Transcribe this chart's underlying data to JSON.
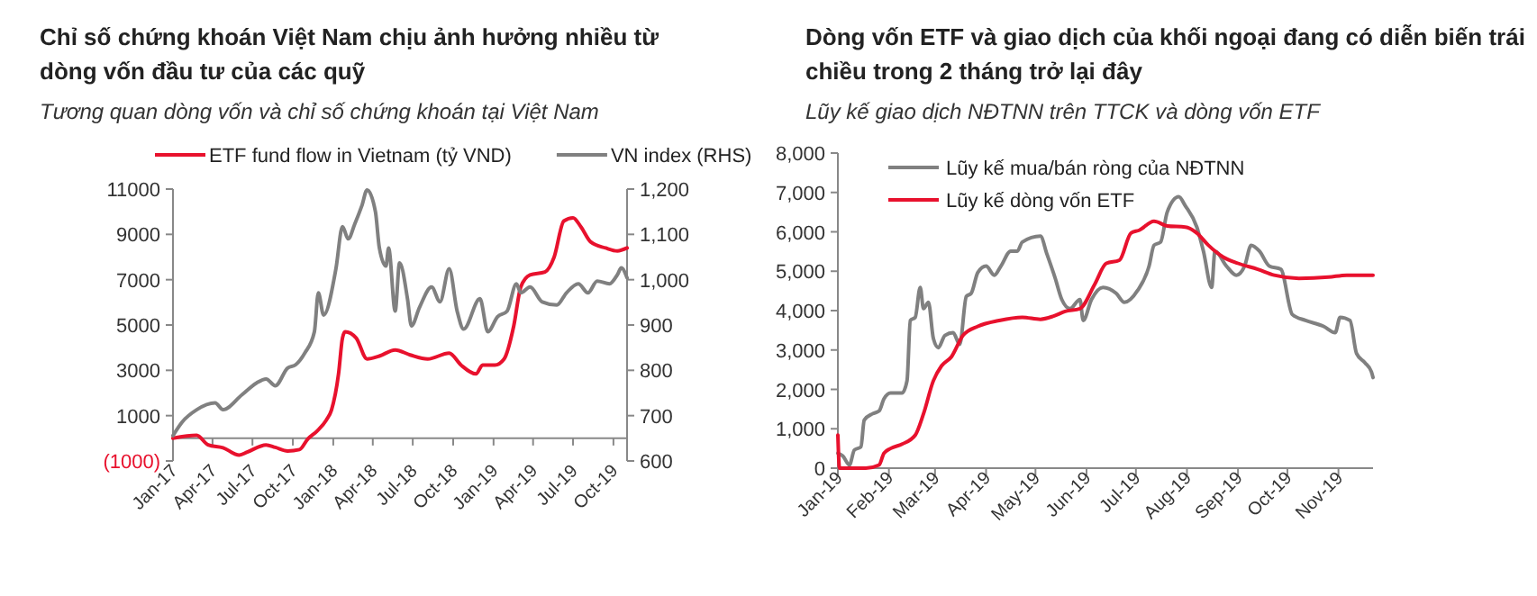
{
  "chart_data": [
    {
      "type": "line",
      "title": "Chỉ số chứng khoán Việt Nam chịu ảnh hưởng nhiều từ dòng vốn đầu tư của các quỹ",
      "subtitle": "Tương quan dòng vốn và chỉ số chứng khoán tại Việt Nam",
      "legend": "top",
      "grid": false,
      "xlim": [
        "2017-01-01",
        "2019-11-01"
      ],
      "xticks": [
        {
          "value": "2017-01-01",
          "label": "Jan-17"
        },
        {
          "value": "2017-04-01",
          "label": "Apr-17"
        },
        {
          "value": "2017-07-01",
          "label": "Jul-17"
        },
        {
          "value": "2017-10-01",
          "label": "Oct-17"
        },
        {
          "value": "2018-01-01",
          "label": "Jan-18"
        },
        {
          "value": "2018-04-01",
          "label": "Apr-18"
        },
        {
          "value": "2018-07-01",
          "label": "Jul-18"
        },
        {
          "value": "2018-10-01",
          "label": "Oct-18"
        },
        {
          "value": "2019-01-01",
          "label": "Jan-19"
        },
        {
          "value": "2019-04-01",
          "label": "Apr-19"
        },
        {
          "value": "2019-07-01",
          "label": "Jul-19"
        },
        {
          "value": "2019-10-01",
          "label": "Oct-19"
        }
      ],
      "ylim": [
        -1000,
        11000
      ],
      "yticks": [
        {
          "value": -1000,
          "label": "(1000)"
        },
        1000,
        3000,
        5000,
        7000,
        9000,
        11000
      ],
      "y2lim": [
        600,
        1200
      ],
      "y2ticks": [
        600,
        700,
        800,
        900,
        {
          "value": 1000,
          "label": "1,000"
        },
        {
          "value": 1100,
          "label": "1,100"
        },
        {
          "value": 1200,
          "label": "1,200"
        }
      ],
      "series": [
        {
          "name": "ETF  fund flow in Vietnam (tỷ VND)",
          "color": "#e8112d",
          "x": [
            "2017-01-01",
            "2017-02-24",
            "2017-03-22",
            "2017-04-25",
            "2017-06-01",
            "2017-06-19",
            "2017-08-01",
            "2017-08-22",
            "2017-09-19",
            "2017-10-16",
            "2017-11-04",
            "2017-11-25",
            "2017-12-16",
            "2017-12-28",
            "2018-01-13",
            "2018-01-22",
            "2018-01-28",
            "2018-02-22",
            "2018-03-19",
            "2018-04-16",
            "2018-05-22",
            "2018-06-25",
            "2018-08-04",
            "2018-09-22",
            "2018-10-19",
            "2018-11-22",
            "2018-12-07",
            "2019-01-04",
            "2019-01-25",
            "2019-02-16",
            "2019-03-04",
            "2019-03-25",
            "2019-04-28",
            "2019-05-19",
            "2019-06-10",
            "2019-07-01",
            "2019-07-19",
            "2019-08-10",
            "2019-09-13",
            "2019-10-10",
            "2019-11-01"
          ],
          "values": [
            0,
            130,
            -290,
            -420,
            -740,
            -610,
            -290,
            -400,
            -560,
            -500,
            -30,
            320,
            800,
            1250,
            2840,
            4430,
            4700,
            4430,
            3500,
            3630,
            3900,
            3680,
            3500,
            3760,
            3230,
            2840,
            3230,
            3230,
            3500,
            4960,
            6680,
            7210,
            7340,
            8000,
            9590,
            9730,
            9330,
            8670,
            8400,
            8270,
            8400
          ]
        },
        {
          "name": "VN index (RHS)",
          "color": "#808080",
          "axis": "y2",
          "x": [
            "2017-01-01",
            "2017-01-22",
            "2017-02-24",
            "2017-04-07",
            "2017-04-25",
            "2017-06-07",
            "2017-07-10",
            "2017-08-01",
            "2017-08-22",
            "2017-09-19",
            "2017-10-07",
            "2017-10-28",
            "2017-11-19",
            "2017-11-28",
            "2017-12-10",
            "2018-01-07",
            "2018-01-22",
            "2018-02-04",
            "2018-02-19",
            "2018-03-07",
            "2018-03-19",
            "2018-04-07",
            "2018-04-16",
            "2018-05-01",
            "2018-05-07",
            "2018-05-22",
            "2018-06-01",
            "2018-06-19",
            "2018-06-28",
            "2018-07-16",
            "2018-08-13",
            "2018-09-01",
            "2018-09-22",
            "2018-10-10",
            "2018-10-25",
            "2018-12-01",
            "2018-12-19",
            "2019-01-10",
            "2019-02-01",
            "2019-02-22",
            "2019-03-04",
            "2019-03-25",
            "2019-04-22",
            "2019-05-25",
            "2019-06-16",
            "2019-07-13",
            "2019-08-04",
            "2019-08-25",
            "2019-09-22",
            "2019-10-10",
            "2019-10-19",
            "2019-11-01"
          ],
          "values": [
            656,
            686,
            713,
            728,
            713,
            746,
            772,
            781,
            766,
            805,
            812,
            838,
            885,
            971,
            922,
            1024,
            1117,
            1090,
            1123,
            1163,
            1198,
            1150,
            1070,
            1030,
            1070,
            931,
            1037,
            958,
            898,
            938,
            984,
            951,
            1024,
            931,
            891,
            958,
            885,
            918,
            931,
            991,
            971,
            984,
            951,
            944,
            971,
            991,
            971,
            997,
            991,
            1011,
            1026,
            1004
          ]
        }
      ]
    },
    {
      "type": "line",
      "title": "Dòng vốn ETF và giao dịch của khối ngoại đang có diễn biến trái chiều trong 2 tháng trở lại đây",
      "subtitle": "Lũy kế giao dịch NĐTNN trên TTCK và dòng vốn ETF",
      "legend": "top left",
      "grid": false,
      "xlim": [
        "2019-01-01",
        "2019-11-22"
      ],
      "xticks": [
        {
          "value": "2019-01-01",
          "label": "Jan-19"
        },
        {
          "value": "2019-02-01",
          "label": "Feb-19"
        },
        {
          "value": "2019-03-01",
          "label": "Mar-19"
        },
        {
          "value": "2019-04-01",
          "label": "Apr-19"
        },
        {
          "value": "2019-05-01",
          "label": "May-19"
        },
        {
          "value": "2019-06-01",
          "label": "Jun-19"
        },
        {
          "value": "2019-07-01",
          "label": "Jul-19"
        },
        {
          "value": "2019-08-01",
          "label": "Aug-19"
        },
        {
          "value": "2019-09-01",
          "label": "Sep-19"
        },
        {
          "value": "2019-10-01",
          "label": "Oct-19"
        },
        {
          "value": "2019-11-01",
          "label": "Nov-19"
        }
      ],
      "ylim": [
        0,
        8000
      ],
      "yticks": [
        0,
        {
          "value": 1000,
          "label": "1,000"
        },
        {
          "value": 2000,
          "label": "2,000"
        },
        {
          "value": 3000,
          "label": "3,000"
        },
        {
          "value": 4000,
          "label": "4,000"
        },
        {
          "value": 5000,
          "label": "5,000"
        },
        {
          "value": 6000,
          "label": "6,000"
        },
        {
          "value": 7000,
          "label": "7,000"
        },
        {
          "value": 8000,
          "label": "8,000"
        }
      ],
      "series": [
        {
          "name": "Lũy kế mua/bán  ròng của NĐTNN",
          "color": "#808080",
          "x": [
            "2019-01-01",
            "2019-01-04",
            "2019-01-08",
            "2019-01-11",
            "2019-01-15",
            "2019-01-17",
            "2019-01-22",
            "2019-01-26",
            "2019-01-29",
            "2019-02-02",
            "2019-02-09",
            "2019-02-12",
            "2019-02-14",
            "2019-02-17",
            "2019-02-20",
            "2019-02-22",
            "2019-02-25",
            "2019-02-28",
            "2019-03-03",
            "2019-03-07",
            "2019-03-12",
            "2019-03-16",
            "2019-03-20",
            "2019-03-23",
            "2019-03-27",
            "2019-04-01",
            "2019-04-06",
            "2019-04-10",
            "2019-04-16",
            "2019-04-20",
            "2019-04-23",
            "2019-05-04",
            "2019-05-08",
            "2019-05-13",
            "2019-05-17",
            "2019-05-22",
            "2019-05-28",
            "2019-05-30",
            "2019-06-04",
            "2019-06-11",
            "2019-06-19",
            "2019-06-24",
            "2019-07-02",
            "2019-07-09",
            "2019-07-12",
            "2019-07-16",
            "2019-07-20",
            "2019-07-27",
            "2019-07-31",
            "2019-08-07",
            "2019-08-11",
            "2019-08-16",
            "2019-08-18",
            "2019-08-25",
            "2019-08-31",
            "2019-09-05",
            "2019-09-09",
            "2019-09-14",
            "2019-09-20",
            "2019-09-27",
            "2019-10-04",
            "2019-10-12",
            "2019-10-23",
            "2019-10-30",
            "2019-11-02",
            "2019-11-08",
            "2019-11-12",
            "2019-11-17",
            "2019-11-21",
            "2019-11-22"
          ],
          "values": [
            380,
            310,
            80,
            460,
            540,
            1220,
            1380,
            1450,
            1760,
            1910,
            1910,
            2220,
            3750,
            3830,
            4590,
            4050,
            4210,
            3290,
            3060,
            3370,
            3440,
            3140,
            4360,
            4440,
            4970,
            5130,
            4900,
            5130,
            5510,
            5510,
            5740,
            5890,
            5430,
            4820,
            4280,
            4050,
            4280,
            3750,
            4280,
            4590,
            4440,
            4210,
            4510,
            5130,
            5660,
            5740,
            6500,
            6890,
            6660,
            6120,
            5510,
            4590,
            5510,
            5130,
            4900,
            5130,
            5660,
            5510,
            5130,
            5050,
            3900,
            3750,
            3600,
            3440,
            3830,
            3750,
            2910,
            2680,
            2450,
            2300
          ]
        },
        {
          "name": "Lũy kế dòng vốn ETF",
          "color": "#e8112d",
          "x": [
            "2019-01-01",
            "2019-01-02",
            "2019-01-08",
            "2019-01-18",
            "2019-01-26",
            "2019-01-29",
            "2019-02-02",
            "2019-02-09",
            "2019-02-17",
            "2019-02-22",
            "2019-02-28",
            "2019-03-05",
            "2019-03-11",
            "2019-03-18",
            "2019-03-27",
            "2019-04-09",
            "2019-04-23",
            "2019-05-04",
            "2019-05-12",
            "2019-05-19",
            "2019-05-28",
            "2019-06-06",
            "2019-06-13",
            "2019-06-21",
            "2019-06-28",
            "2019-07-03",
            "2019-07-12",
            "2019-07-20",
            "2019-07-31",
            "2019-08-07",
            "2019-08-14",
            "2019-08-23",
            "2019-09-01",
            "2019-09-13",
            "2019-09-23",
            "2019-10-08",
            "2019-10-26",
            "2019-11-06",
            "2019-11-22"
          ],
          "values": [
            840,
            0,
            0,
            0,
            80,
            380,
            500,
            610,
            840,
            1380,
            2220,
            2600,
            2830,
            3370,
            3600,
            3750,
            3830,
            3780,
            3860,
            3980,
            4050,
            4670,
            5200,
            5280,
            5970,
            6040,
            6270,
            6150,
            6120,
            5970,
            5660,
            5360,
            5200,
            5050,
            4900,
            4820,
            4850,
            4900,
            4900
          ]
        }
      ]
    }
  ]
}
